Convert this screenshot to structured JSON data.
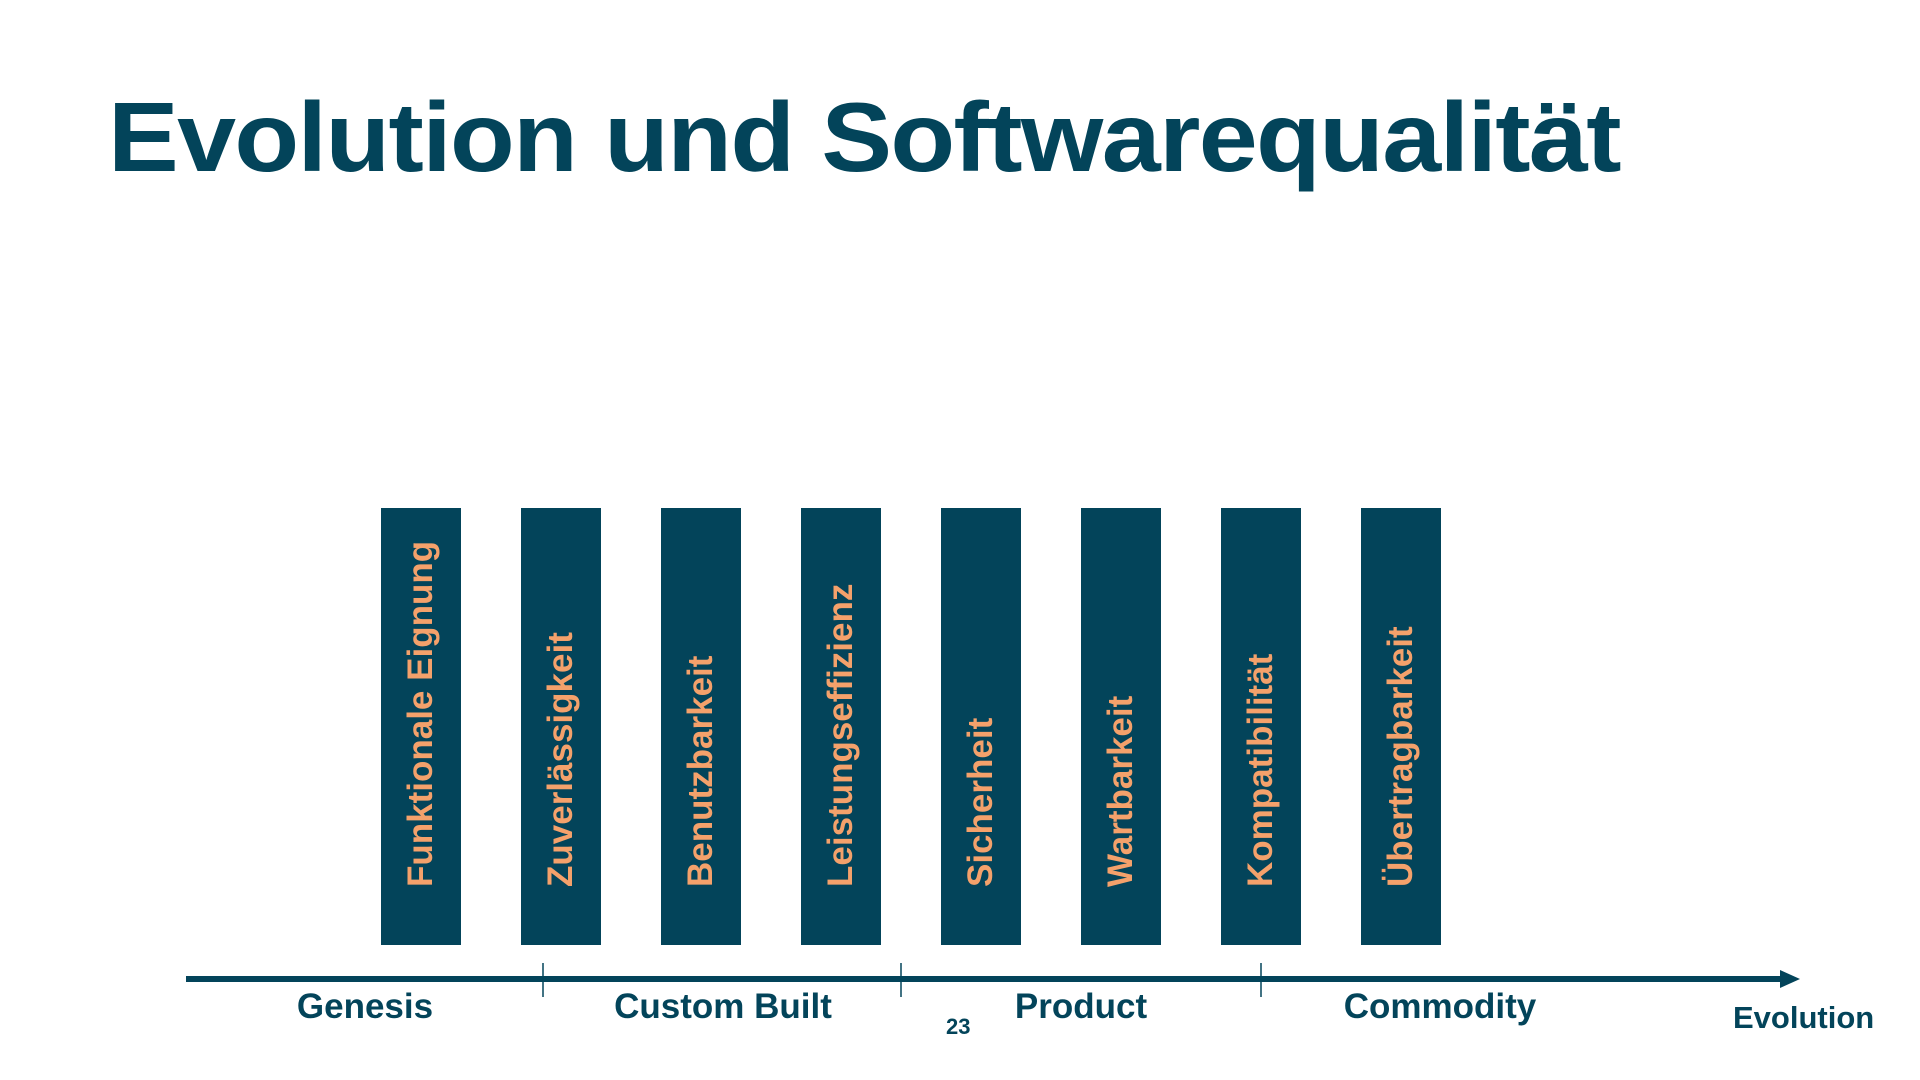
{
  "slide": {
    "title": "Evolution und Softwarequalität",
    "page_number": "23",
    "colors": {
      "primary": "#03445a",
      "accent": "#f4a16b",
      "background": "#ffffff"
    }
  },
  "qualities": [
    {
      "label": "Funktionale Eignung"
    },
    {
      "label": "Zuverlässigkeit"
    },
    {
      "label": "Benutzbarkeit"
    },
    {
      "label": "Leistungseffizienz"
    },
    {
      "label": "Sicherheit"
    },
    {
      "label": "Wartbarkeit"
    },
    {
      "label": "Kompatibilität"
    },
    {
      "label": "Übertragbarkeit"
    }
  ],
  "axis": {
    "label": "Evolution",
    "phases": [
      {
        "label": "Genesis"
      },
      {
        "label": "Custom Built"
      },
      {
        "label": "Product"
      },
      {
        "label": "Commodity"
      }
    ]
  }
}
